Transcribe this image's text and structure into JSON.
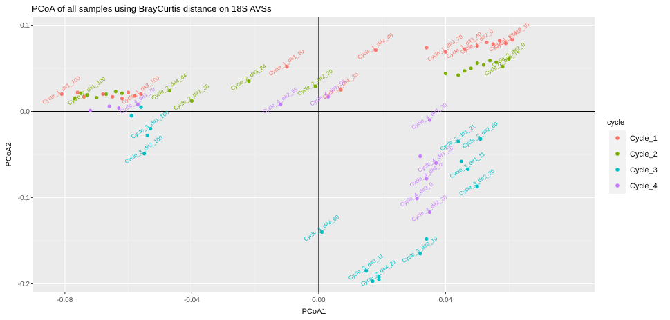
{
  "chart_data": {
    "type": "scatter",
    "title": "PCoA of all samples using BrayCurtis distance on 18S AVSs",
    "xlabel": "PCoA1",
    "ylabel": "PCoA2",
    "xlim": [
      -0.09,
      0.087
    ],
    "ylim": [
      -0.21,
      0.11
    ],
    "x_ticks": [
      -0.08,
      -0.04,
      0.0,
      0.04
    ],
    "x_tick_labels": [
      "-0.08",
      "-0.04",
      "0.00",
      "0.04"
    ],
    "y_ticks": [
      -0.2,
      -0.1,
      0.0,
      0.1
    ],
    "y_tick_labels": [
      "-0.2",
      "-0.1",
      "0.0",
      "0.1"
    ],
    "reference_lines": {
      "x": 0,
      "y": 0
    },
    "grid": true,
    "legend": {
      "title": "cycle",
      "position": "right"
    },
    "series": [
      {
        "name": "Cycle_1",
        "color": "#F8766D",
        "points": [
          {
            "x": -0.081,
            "y": 0.02,
            "label": "Cycle_1_d#1_100"
          },
          {
            "x": -0.076,
            "y": 0.022,
            "label": ""
          },
          {
            "x": -0.074,
            "y": 0.017,
            "label": ""
          },
          {
            "x": -0.068,
            "y": 0.02,
            "label": ""
          },
          {
            "x": -0.065,
            "y": 0.017,
            "label": ""
          },
          {
            "x": -0.062,
            "y": 0.015,
            "label": ""
          },
          {
            "x": -0.06,
            "y": 0.022,
            "label": ""
          },
          {
            "x": -0.058,
            "y": 0.018,
            "label": ""
          },
          {
            "x": -0.056,
            "y": 0.02,
            "label": "Cycle_1_d#3_100"
          },
          {
            "x": -0.01,
            "y": 0.052,
            "label": "Cycle_1_d#1_50"
          },
          {
            "x": 0.007,
            "y": 0.025,
            "label": "Cycle_1_d#1_30"
          },
          {
            "x": 0.018,
            "y": 0.071,
            "label": "Cycle_1_d#2_46"
          },
          {
            "x": 0.034,
            "y": 0.074,
            "label": ""
          },
          {
            "x": 0.04,
            "y": 0.069,
            "label": "Cycle_1_d#3_70"
          },
          {
            "x": 0.046,
            "y": 0.072,
            "label": "Cycle_1_d#3_40"
          },
          {
            "x": 0.05,
            "y": 0.076,
            "label": "Cycle_1_d#2_0"
          },
          {
            "x": 0.053,
            "y": 0.08,
            "label": ""
          },
          {
            "x": 0.055,
            "y": 0.078,
            "label": ""
          },
          {
            "x": 0.057,
            "y": 0.082,
            "label": ""
          },
          {
            "x": 0.059,
            "y": 0.079,
            "label": "Cycle_1_d#4_0"
          },
          {
            "x": 0.061,
            "y": 0.083,
            "label": "Cycle_1_d#3_30"
          }
        ]
      },
      {
        "name": "Cycle_2",
        "color": "#7CAE00",
        "points": [
          {
            "x": -0.077,
            "y": 0.015,
            "label": ""
          },
          {
            "x": -0.075,
            "y": 0.021,
            "label": ""
          },
          {
            "x": -0.073,
            "y": 0.019,
            "label": "Cycle_2_d#1_100"
          },
          {
            "x": -0.07,
            "y": 0.016,
            "label": ""
          },
          {
            "x": -0.067,
            "y": 0.02,
            "label": ""
          },
          {
            "x": -0.064,
            "y": 0.023,
            "label": ""
          },
          {
            "x": -0.062,
            "y": 0.021,
            "label": ""
          },
          {
            "x": -0.047,
            "y": 0.024,
            "label": "Cycle_2_d#4_44"
          },
          {
            "x": -0.04,
            "y": 0.012,
            "label": "Cycle_2_d#1_38"
          },
          {
            "x": -0.022,
            "y": 0.035,
            "label": "Cycle_2_d#3_24"
          },
          {
            "x": -0.001,
            "y": 0.029,
            "label": "Cycle_2_d#2_20"
          },
          {
            "x": 0.04,
            "y": 0.044,
            "label": ""
          },
          {
            "x": 0.044,
            "y": 0.042,
            "label": ""
          },
          {
            "x": 0.046,
            "y": 0.047,
            "label": ""
          },
          {
            "x": 0.048,
            "y": 0.05,
            "label": ""
          },
          {
            "x": 0.05,
            "y": 0.056,
            "label": ""
          },
          {
            "x": 0.052,
            "y": 0.054,
            "label": ""
          },
          {
            "x": 0.054,
            "y": 0.059,
            "label": ""
          },
          {
            "x": 0.056,
            "y": 0.057,
            "label": ""
          },
          {
            "x": 0.058,
            "y": 0.052,
            "label": "Cycle_2_d#4_16"
          },
          {
            "x": 0.06,
            "y": 0.061,
            "label": "Cycle_2_d#2_0"
          }
        ]
      },
      {
        "name": "Cycle_3",
        "color": "#00BFC4",
        "points": [
          {
            "x": -0.059,
            "y": -0.005,
            "label": ""
          },
          {
            "x": -0.056,
            "y": 0.005,
            "label": ""
          },
          {
            "x": -0.055,
            "y": -0.049,
            "label": "Cycle_3_d#2_100"
          },
          {
            "x": -0.054,
            "y": -0.028,
            "label": ""
          },
          {
            "x": -0.053,
            "y": -0.02,
            "label": "Cycle_3_d#1_100"
          },
          {
            "x": 0.001,
            "y": -0.14,
            "label": "Cycle_3_d#3_60"
          },
          {
            "x": 0.015,
            "y": -0.185,
            "label": "Cycle_3_d#3_11"
          },
          {
            "x": 0.017,
            "y": -0.197,
            "label": ""
          },
          {
            "x": 0.019,
            "y": -0.192,
            "label": "Cycle_3_d#4_21"
          },
          {
            "x": 0.019,
            "y": -0.195,
            "label": ""
          },
          {
            "x": 0.032,
            "y": -0.165,
            "label": "Cycle_3_d#2_10"
          },
          {
            "x": 0.034,
            "y": -0.148,
            "label": ""
          },
          {
            "x": 0.044,
            "y": -0.035,
            "label": "Cycle_3_d#1_21"
          },
          {
            "x": 0.045,
            "y": -0.058,
            "label": ""
          },
          {
            "x": 0.047,
            "y": -0.067,
            "label": "Cycle_3_d#1_11"
          },
          {
            "x": 0.05,
            "y": -0.087,
            "label": "Cycle_3_d#2_20"
          },
          {
            "x": 0.051,
            "y": -0.032,
            "label": "Cycle_3_d#2_60"
          }
        ]
      },
      {
        "name": "Cycle_4",
        "color": "#C77CFF",
        "points": [
          {
            "x": -0.072,
            "y": 0.001,
            "label": ""
          },
          {
            "x": -0.066,
            "y": 0.006,
            "label": ""
          },
          {
            "x": -0.063,
            "y": 0.004,
            "label": ""
          },
          {
            "x": -0.057,
            "y": 0.008,
            "label": "Cycle_4_d#1_70"
          },
          {
            "x": -0.012,
            "y": 0.008,
            "label": "Cycle_4_d#2_55"
          },
          {
            "x": 0.003,
            "y": 0.017,
            "label": "Cycle_4_d#1_50"
          },
          {
            "x": 0.031,
            "y": -0.101,
            "label": "Cycle_4_d#3_0"
          },
          {
            "x": 0.032,
            "y": -0.052,
            "label": ""
          },
          {
            "x": 0.034,
            "y": -0.078,
            "label": "Cycle_4_d#4_0"
          },
          {
            "x": 0.035,
            "y": -0.117,
            "label": "Cycle_4_d#2_20"
          },
          {
            "x": 0.035,
            "y": -0.01,
            "label": "Cycle_4_d#1_30"
          },
          {
            "x": 0.037,
            "y": -0.06,
            "label": "Cycle_4_d#1_20"
          }
        ]
      }
    ]
  }
}
